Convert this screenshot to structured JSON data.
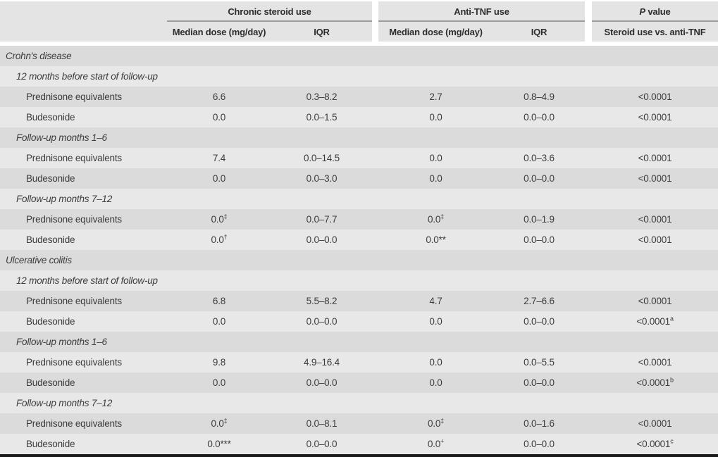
{
  "table": {
    "header": {
      "groups": [
        {
          "label": "Chronic steroid use"
        },
        {
          "label": "Anti-TNF use"
        },
        {
          "label_prefix": "P",
          "label_suffix": " value"
        }
      ],
      "columns": [
        "Median dose (mg/day)",
        "IQR",
        "Median dose (mg/day)",
        "IQR",
        "Steroid use vs. anti-TNF"
      ]
    },
    "rows": [
      {
        "kind": "section",
        "label": "Crohn's disease"
      },
      {
        "kind": "subsection",
        "label": "12 months before start of follow-up"
      },
      {
        "kind": "data",
        "label": "Prednisone equivalents",
        "cells": [
          "6.6",
          "0.3–8.2",
          "2.7",
          "0.8–4.9",
          "<0.0001"
        ]
      },
      {
        "kind": "data",
        "label": "Budesonide",
        "cells": [
          "0.0",
          "0.0–1.5",
          "0.0",
          "0.0–0.0",
          "<0.0001"
        ]
      },
      {
        "kind": "subsection",
        "label": "Follow-up months 1–6"
      },
      {
        "kind": "data",
        "label": "Prednisone equivalents",
        "cells": [
          "7.4",
          "0.0–14.5",
          "0.0",
          "0.0–3.6",
          "<0.0001"
        ]
      },
      {
        "kind": "data",
        "label": "Budesonide",
        "cells": [
          "0.0",
          "0.0–3.0",
          "0.0",
          "0.0–0.0",
          "<0.0001"
        ]
      },
      {
        "kind": "subsection",
        "label": "Follow-up months 7–12"
      },
      {
        "kind": "data",
        "label": "Prednisone equivalents",
        "cells": [
          "0.0^‡",
          "0.0–7.7",
          "0.0^‡",
          "0.0–1.9",
          "<0.0001"
        ]
      },
      {
        "kind": "data",
        "label": "Budesonide",
        "cells": [
          "0.0^†",
          "0.0–0.0",
          "0.0**",
          "0.0–0.0",
          "<0.0001"
        ]
      },
      {
        "kind": "section",
        "label": "Ulcerative colitis"
      },
      {
        "kind": "subsection",
        "label": "12 months before start of follow-up"
      },
      {
        "kind": "data",
        "label": "Prednisone equivalents",
        "cells": [
          "6.8",
          "5.5–8.2",
          "4.7",
          "2.7–6.6",
          "<0.0001"
        ]
      },
      {
        "kind": "data",
        "label": "Budesonide",
        "cells": [
          "0.0",
          "0.0–0.0",
          "0.0",
          "0.0–0.0",
          "<0.0001^a"
        ]
      },
      {
        "kind": "subsection",
        "label": "Follow-up months 1–6"
      },
      {
        "kind": "data",
        "label": "Prednisone equivalents",
        "cells": [
          "9.8",
          "4.9–16.4",
          "0.0",
          "0.0–5.5",
          "<0.0001"
        ]
      },
      {
        "kind": "data",
        "label": "Budesonide",
        "cells": [
          "0.0",
          "0.0–0.0",
          "0.0",
          "0.0–0.0",
          "<0.0001^b"
        ]
      },
      {
        "kind": "subsection",
        "label": "Follow-up months 7–12"
      },
      {
        "kind": "data",
        "label": "Prednisone equivalents",
        "cells": [
          "0.0^‡",
          "0.0–8.1",
          "0.0^‡",
          "0.0–1.6",
          "<0.0001"
        ]
      },
      {
        "kind": "data",
        "label": "Budesonide",
        "cells": [
          "0.0***",
          "0.0–0.0",
          "0.0^+",
          "0.0–0.0",
          "<0.0001^c"
        ]
      }
    ]
  },
  "colors": {
    "row_dark": "#dbdbdb",
    "row_light": "#e8e8e8",
    "header_bg": "#e4e4e4",
    "header_rule": "#9c9c9c",
    "bottom_bar": "#1a1a1a",
    "text": "#3c3c3c"
  }
}
